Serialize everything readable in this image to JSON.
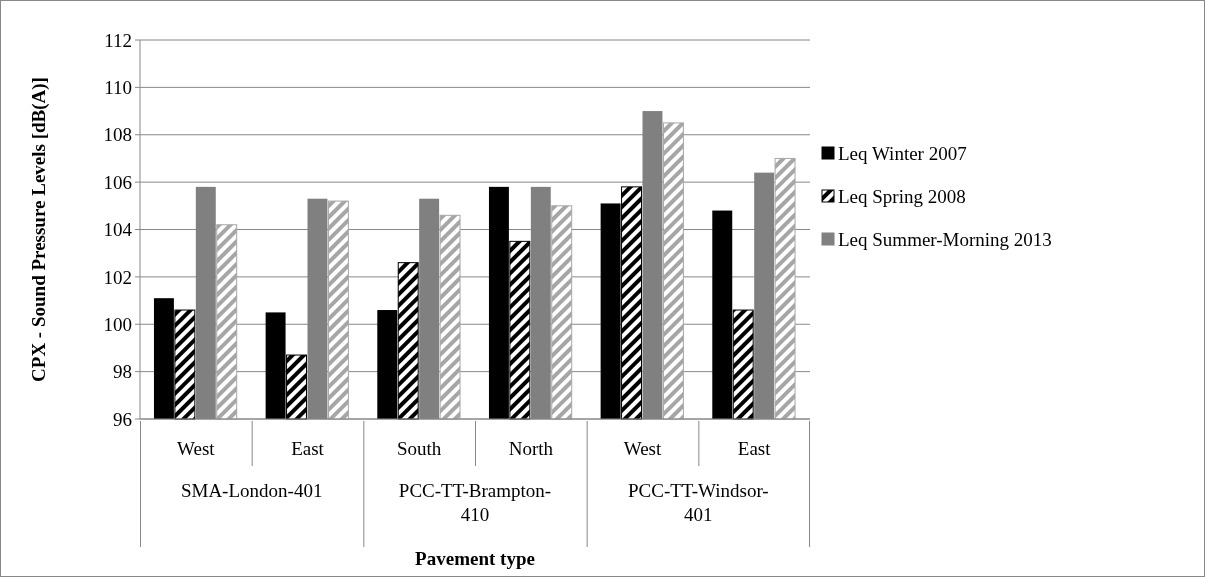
{
  "chart_data": {
    "type": "bar",
    "xlabel": "Pavement type",
    "ylabel": "CPX - Sound Pressure Levels [dB(A)]",
    "categories": [
      "West",
      "East",
      "South",
      "North",
      "West",
      "East"
    ],
    "annotations": [
      "SMA-London-401",
      "PCC-TT-Brampton-410",
      "PCC-TT-Windsor-401"
    ],
    "series": [
      {
        "name": "Leq Winter 2007",
        "color": "#000000",
        "values": [
          101.1,
          100.5,
          100.6,
          105.8,
          105.1,
          104.8
        ]
      },
      {
        "name": "Leq Spring 2008",
        "color": "#000000",
        "values": [
          100.6,
          98.7,
          102.6,
          103.5,
          105.8,
          100.6
        ]
      },
      {
        "name": "Leq Summer-Morning 2013",
        "color": "#808080",
        "values": [
          105.8,
          105.3,
          105.3,
          105.8,
          109.0,
          106.4
        ]
      },
      {
        "color": "#a6a6a6",
        "values": [
          104.2,
          105.2,
          104.6,
          105.0,
          108.5,
          107.0
        ]
      }
    ],
    "ylim": [
      96,
      112
    ],
    "yticks": [
      96,
      98,
      100,
      102,
      104,
      106,
      108,
      110,
      112
    ],
    "grid": "y",
    "legend": "right"
  }
}
